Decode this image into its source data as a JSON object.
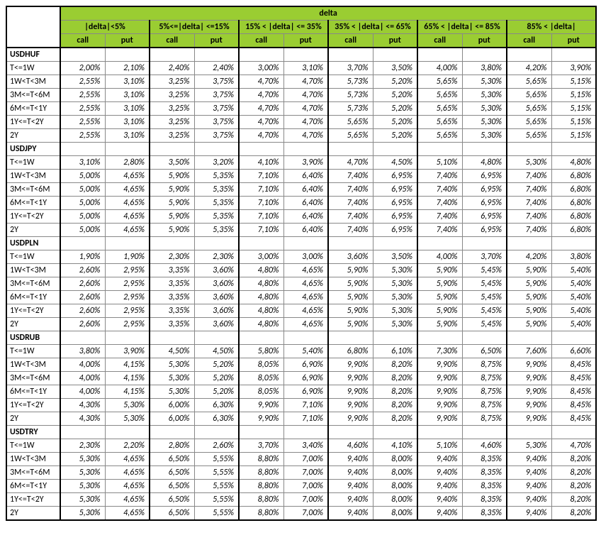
{
  "header": {
    "main": "delta",
    "buckets": [
      "|delta|<5%",
      "5%<=|delta| <=15%",
      "15% < |delta| <= 35%",
      "35% < |delta| <= 65%",
      "65% < |delta| <= 85%",
      "85% < |delta|"
    ],
    "call": "call",
    "put": "put"
  },
  "tenors": [
    "T<=1W",
    "1W<T<3M",
    "3M<=T<6M",
    "6M<=T<1Y",
    "1Y<=T<2Y",
    "2Y"
  ],
  "sections": [
    {
      "name": "USDHUF",
      "rows": [
        [
          "2,00%",
          "2,10%",
          "2,40%",
          "2,40%",
          "3,00%",
          "3,10%",
          "3,70%",
          "3,50%",
          "4,00%",
          "3,80%",
          "4,20%",
          "3,90%"
        ],
        [
          "2,55%",
          "3,10%",
          "3,25%",
          "3,75%",
          "4,70%",
          "4,70%",
          "5,73%",
          "5,20%",
          "5,65%",
          "5,30%",
          "5,65%",
          "5,15%"
        ],
        [
          "2,55%",
          "3,10%",
          "3,25%",
          "3,75%",
          "4,70%",
          "4,70%",
          "5,73%",
          "5,20%",
          "5,65%",
          "5,30%",
          "5,65%",
          "5,15%"
        ],
        [
          "2,55%",
          "3,10%",
          "3,25%",
          "3,75%",
          "4,70%",
          "4,70%",
          "5,73%",
          "5,20%",
          "5,65%",
          "5,30%",
          "5,65%",
          "5,15%"
        ],
        [
          "2,55%",
          "3,10%",
          "3,25%",
          "3,75%",
          "4,70%",
          "4,70%",
          "5,65%",
          "5,20%",
          "5,65%",
          "5,30%",
          "5,65%",
          "5,15%"
        ],
        [
          "2,55%",
          "3,10%",
          "3,25%",
          "3,75%",
          "4,70%",
          "4,70%",
          "5,65%",
          "5,20%",
          "5,65%",
          "5,30%",
          "5,65%",
          "5,15%"
        ]
      ]
    },
    {
      "name": "USDJPY",
      "rows": [
        [
          "3,10%",
          "2,80%",
          "3,50%",
          "3,20%",
          "4,10%",
          "3,90%",
          "4,70%",
          "4,50%",
          "5,10%",
          "4,80%",
          "5,30%",
          "4,80%"
        ],
        [
          "5,00%",
          "4,65%",
          "5,90%",
          "5,35%",
          "7,10%",
          "6,40%",
          "7,40%",
          "6,95%",
          "7,40%",
          "6,95%",
          "7,40%",
          "6,80%"
        ],
        [
          "5,00%",
          "4,65%",
          "5,90%",
          "5,35%",
          "7,10%",
          "6,40%",
          "7,40%",
          "6,95%",
          "7,40%",
          "6,95%",
          "7,40%",
          "6,80%"
        ],
        [
          "5,00%",
          "4,65%",
          "5,90%",
          "5,35%",
          "7,10%",
          "6,40%",
          "7,40%",
          "6,95%",
          "7,40%",
          "6,95%",
          "7,40%",
          "6,80%"
        ],
        [
          "5,00%",
          "4,65%",
          "5,90%",
          "5,35%",
          "7,10%",
          "6,40%",
          "7,40%",
          "6,95%",
          "7,40%",
          "6,95%",
          "7,40%",
          "6,80%"
        ],
        [
          "5,00%",
          "4,65%",
          "5,90%",
          "5,35%",
          "7,10%",
          "6,40%",
          "7,40%",
          "6,95%",
          "7,40%",
          "6,95%",
          "7,40%",
          "6,80%"
        ]
      ]
    },
    {
      "name": "USDPLN",
      "rows": [
        [
          "1,90%",
          "1,90%",
          "2,30%",
          "2,30%",
          "3,00%",
          "3,00%",
          "3,60%",
          "3,50%",
          "4,00%",
          "3,70%",
          "4,20%",
          "3,80%"
        ],
        [
          "2,60%",
          "2,95%",
          "3,35%",
          "3,60%",
          "4,80%",
          "4,65%",
          "5,90%",
          "5,30%",
          "5,90%",
          "5,45%",
          "5,90%",
          "5,40%"
        ],
        [
          "2,60%",
          "2,95%",
          "3,35%",
          "3,60%",
          "4,80%",
          "4,65%",
          "5,90%",
          "5,30%",
          "5,90%",
          "5,45%",
          "5,90%",
          "5,40%"
        ],
        [
          "2,60%",
          "2,95%",
          "3,35%",
          "3,60%",
          "4,80%",
          "4,65%",
          "5,90%",
          "5,30%",
          "5,90%",
          "5,45%",
          "5,90%",
          "5,40%"
        ],
        [
          "2,60%",
          "2,95%",
          "3,35%",
          "3,60%",
          "4,80%",
          "4,65%",
          "5,90%",
          "5,30%",
          "5,90%",
          "5,45%",
          "5,90%",
          "5,40%"
        ],
        [
          "2,60%",
          "2,95%",
          "3,35%",
          "3,60%",
          "4,80%",
          "4,65%",
          "5,90%",
          "5,30%",
          "5,90%",
          "5,45%",
          "5,90%",
          "5,40%"
        ]
      ]
    },
    {
      "name": "USDRUB",
      "rows": [
        [
          "3,80%",
          "3,90%",
          "4,50%",
          "4,50%",
          "5,80%",
          "5,40%",
          "6,80%",
          "6,10%",
          "7,30%",
          "6,50%",
          "7,60%",
          "6,60%"
        ],
        [
          "4,00%",
          "4,15%",
          "5,30%",
          "5,20%",
          "8,05%",
          "6,90%",
          "9,90%",
          "8,20%",
          "9,90%",
          "8,75%",
          "9,90%",
          "8,45%"
        ],
        [
          "4,00%",
          "4,15%",
          "5,30%",
          "5,20%",
          "8,05%",
          "6,90%",
          "9,90%",
          "8,20%",
          "9,90%",
          "8,75%",
          "9,90%",
          "8,45%"
        ],
        [
          "4,00%",
          "4,15%",
          "5,30%",
          "5,20%",
          "8,05%",
          "6,90%",
          "9,90%",
          "8,20%",
          "9,90%",
          "8,75%",
          "9,90%",
          "8,45%"
        ],
        [
          "4,30%",
          "5,30%",
          "6,00%",
          "6,30%",
          "9,90%",
          "7,10%",
          "9,90%",
          "8,20%",
          "9,90%",
          "8,75%",
          "9,90%",
          "8,45%"
        ],
        [
          "4,30%",
          "5,30%",
          "6,00%",
          "6,30%",
          "9,90%",
          "7,10%",
          "9,90%",
          "8,20%",
          "9,90%",
          "8,75%",
          "9,90%",
          "8,45%"
        ]
      ]
    },
    {
      "name": "USDTRY",
      "rows": [
        [
          "2,30%",
          "2,20%",
          "2,80%",
          "2,60%",
          "3,70%",
          "3,40%",
          "4,60%",
          "4,10%",
          "5,10%",
          "4,60%",
          "5,30%",
          "4,70%"
        ],
        [
          "5,30%",
          "4,65%",
          "6,50%",
          "5,55%",
          "8,80%",
          "7,00%",
          "9,40%",
          "8,00%",
          "9,40%",
          "8,35%",
          "9,40%",
          "8,20%"
        ],
        [
          "5,30%",
          "4,65%",
          "6,50%",
          "5,55%",
          "8,80%",
          "7,00%",
          "9,40%",
          "8,00%",
          "9,40%",
          "8,35%",
          "9,40%",
          "8,20%"
        ],
        [
          "5,30%",
          "4,65%",
          "6,50%",
          "5,55%",
          "8,80%",
          "7,00%",
          "9,40%",
          "8,00%",
          "9,40%",
          "8,35%",
          "9,40%",
          "8,20%"
        ],
        [
          "5,30%",
          "4,65%",
          "6,50%",
          "5,55%",
          "8,80%",
          "7,00%",
          "9,40%",
          "8,00%",
          "9,40%",
          "8,35%",
          "9,40%",
          "8,20%"
        ],
        [
          "5,30%",
          "4,65%",
          "6,50%",
          "5,55%",
          "8,80%",
          "7,00%",
          "9,40%",
          "8,00%",
          "9,40%",
          "8,35%",
          "9,40%",
          "8,20%"
        ]
      ]
    }
  ]
}
